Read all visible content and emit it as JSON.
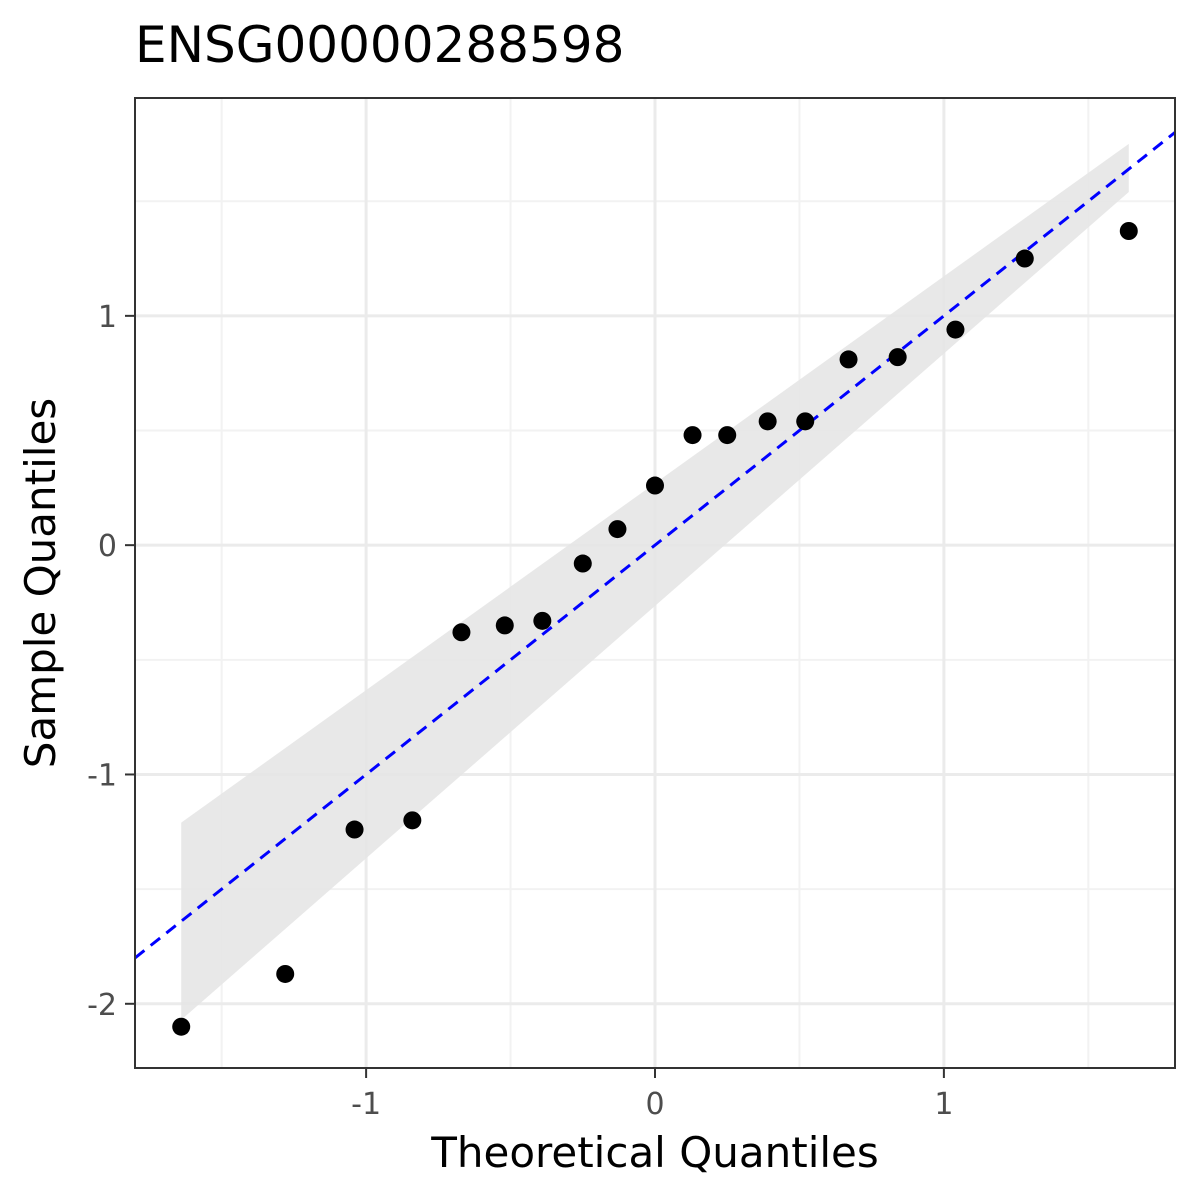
{
  "chart_data": {
    "type": "scatter",
    "title": "ENSG00000288598",
    "xlabel": "Theoretical Quantiles",
    "ylabel": "Sample Quantiles",
    "xlim": [
      -1.8,
      1.8
    ],
    "ylim": [
      -2.28,
      1.95
    ],
    "x_ticks": [
      -1,
      0,
      1
    ],
    "x_tick_labels": [
      "-1",
      "0",
      "1"
    ],
    "y_ticks": [
      -2,
      -1,
      0,
      1
    ],
    "y_tick_labels": [
      "-2",
      "-1",
      "0",
      "1"
    ],
    "grid": true,
    "points": {
      "x": [
        -1.64,
        -1.28,
        -1.04,
        -0.84,
        -0.67,
        -0.52,
        -0.39,
        -0.25,
        -0.13,
        0.0,
        0.13,
        0.25,
        0.39,
        0.52,
        0.67,
        0.84,
        1.04,
        1.28,
        1.64
      ],
      "y": [
        -2.1,
        -1.87,
        -1.24,
        -1.2,
        -0.38,
        -0.35,
        -0.33,
        -0.08,
        0.07,
        0.26,
        0.48,
        0.48,
        0.54,
        0.54,
        0.81,
        0.82,
        0.94,
        1.25,
        1.37
      ],
      "color": "#000000"
    },
    "reference_line": {
      "slope": 1.0,
      "intercept": 0.0,
      "color": "#0000ff",
      "style": "dashed"
    },
    "confidence_band": {
      "x": [
        -1.64,
        1.64
      ],
      "lower": [
        -2.07,
        1.54
      ],
      "upper": [
        -1.21,
        1.75
      ],
      "color": "#e5e5e5"
    },
    "colors": {
      "panel_border": "#333333",
      "grid_major": "#ebebeb",
      "grid_minor": "#f2f2f2"
    }
  }
}
